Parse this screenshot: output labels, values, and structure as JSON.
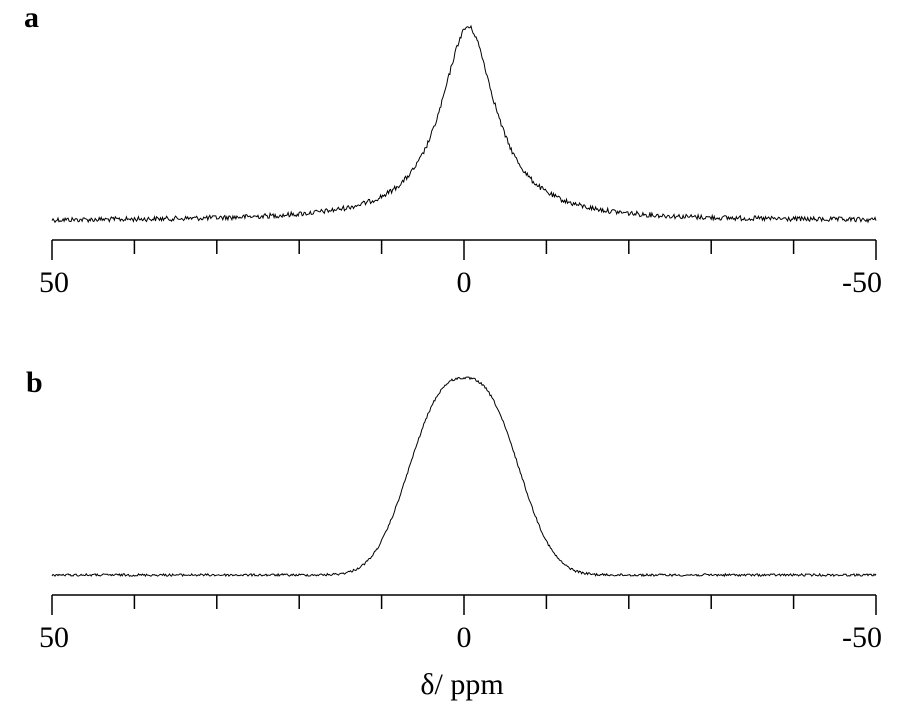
{
  "chart_data": [
    {
      "type": "line",
      "panel_label": "a",
      "title": "",
      "xlabel": "",
      "ylabel": "",
      "x_direction": "reversed",
      "xlim": [
        50,
        -50
      ],
      "major_ticks": [
        50,
        0,
        -50
      ],
      "minor_ticks": [
        40,
        30,
        20,
        10,
        -10,
        -20,
        -30,
        -40
      ],
      "tick_labels": [
        "50",
        "0",
        "-50"
      ],
      "series": [
        {
          "shape": "lorentzian",
          "center_ppm": -0.5,
          "fwhm_ppm": 8,
          "relative_height": 1.0,
          "baseline_noise": "visible"
        }
      ],
      "grid": false,
      "legend": "none"
    },
    {
      "type": "line",
      "panel_label": "b",
      "title": "",
      "xlabel": "δ/ ppm",
      "ylabel": "",
      "x_direction": "reversed",
      "xlim": [
        50,
        -50
      ],
      "major_ticks": [
        50,
        0,
        -50
      ],
      "minor_ticks": [
        40,
        30,
        20,
        10,
        -10,
        -20,
        -30,
        -40
      ],
      "tick_labels": [
        "50",
        "0",
        "-50"
      ],
      "series": [
        {
          "shape": "gaussian_flat_top",
          "center_ppm": 0,
          "fwhm_ppm": 14,
          "relative_height": 1.0,
          "baseline_noise": "low"
        }
      ],
      "grid": false,
      "legend": "none"
    }
  ]
}
